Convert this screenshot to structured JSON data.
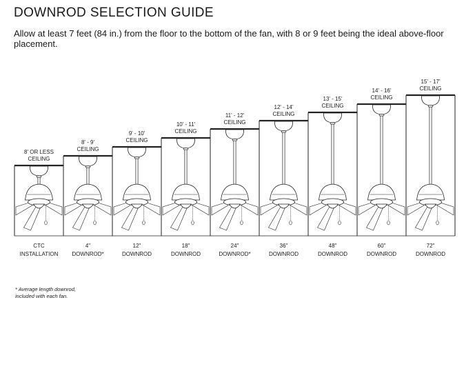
{
  "title": "DOWNROD SELECTION GUIDE",
  "intro": "Allow at least 7 feet (84 in.) from the floor to the bottom of the fan, with 8 or 9 feet being the ideal above-floor placement.",
  "columns": [
    {
      "ceiling": [
        "8' OR LESS",
        "CEILING"
      ],
      "downrod": [
        "CTC",
        "INSTALLATION"
      ],
      "rod_inches": 0
    },
    {
      "ceiling": [
        "8' - 9'",
        "CEILING"
      ],
      "downrod": [
        "4\"",
        "DOWNROD*"
      ],
      "rod_inches": 4
    },
    {
      "ceiling": [
        "9' - 10'",
        "CEILING"
      ],
      "downrod": [
        "12\"",
        "DOWNROD"
      ],
      "rod_inches": 12
    },
    {
      "ceiling": [
        "10' - 11'",
        "CEILING"
      ],
      "downrod": [
        "18\"",
        "DOWNROD"
      ],
      "rod_inches": 18
    },
    {
      "ceiling": [
        "11' - 12'",
        "CEILING"
      ],
      "downrod": [
        "24\"",
        "DOWNROD*"
      ],
      "rod_inches": 24
    },
    {
      "ceiling": [
        "12' - 14'",
        "CEILING"
      ],
      "downrod": [
        "36\"",
        "DOWNROD"
      ],
      "rod_inches": 36
    },
    {
      "ceiling": [
        "13' - 15'",
        "CEILING"
      ],
      "downrod": [
        "48\"",
        "DOWNROD"
      ],
      "rod_inches": 48
    },
    {
      "ceiling": [
        "14' - 16'",
        "CEILING"
      ],
      "downrod": [
        "60\"",
        "DOWNROD"
      ],
      "rod_inches": 60
    },
    {
      "ceiling": [
        "15' - 17'",
        "CEILING"
      ],
      "downrod": [
        "72\"",
        "DOWNROD"
      ],
      "rod_inches": 72
    }
  ],
  "footnote": [
    "* Average length downrod,",
    "included with each fan."
  ]
}
